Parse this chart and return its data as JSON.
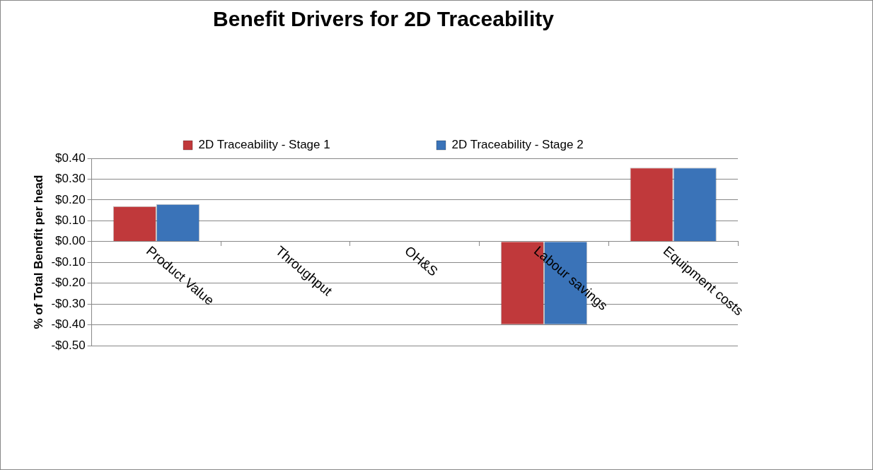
{
  "chart_data": {
    "type": "bar",
    "title": "Benefit Drivers for 2D Traceability",
    "ylabel": "% of Total Benefit per head",
    "categories": [
      "Product Value",
      "Throughput",
      "OH&S",
      "Labour savings",
      "Equipment costs"
    ],
    "series": [
      {
        "name": "2D Traceability - Stage 1",
        "color": "#c0393b",
        "values": [
          0.17,
          0,
          0,
          -0.4,
          0.355
        ]
      },
      {
        "name": "2D Traceability - Stage 2",
        "color": "#3a73b8",
        "values": [
          0.18,
          0,
          0,
          -0.4,
          0.355
        ]
      }
    ],
    "ylim": [
      -0.5,
      0.4
    ],
    "yticks": [
      {
        "value": -0.5,
        "label": "-$0.50"
      },
      {
        "value": -0.4,
        "label": "-$0.40"
      },
      {
        "value": -0.3,
        "label": "-$0.30"
      },
      {
        "value": -0.2,
        "label": "-$0.20"
      },
      {
        "value": -0.1,
        "label": "-$0.10"
      },
      {
        "value": 0,
        "label": "$0.00"
      },
      {
        "value": 0.1,
        "label": "$0.10"
      },
      {
        "value": 0.2,
        "label": "$0.20"
      },
      {
        "value": 0.3,
        "label": "$0.30"
      },
      {
        "value": 0.4,
        "label": "$0.40"
      }
    ],
    "grid": "y",
    "legend": "top"
  }
}
